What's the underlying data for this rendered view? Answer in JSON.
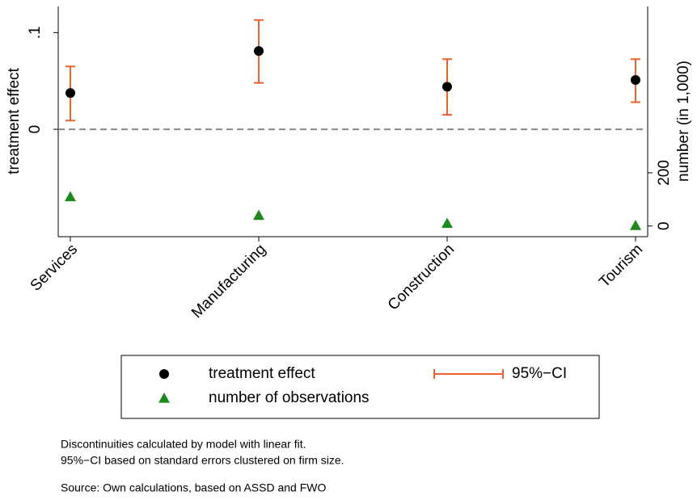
{
  "chart_data": {
    "type": "scatter",
    "categories": [
      "Services",
      "Manufacturing",
      "Construction",
      "Tourism"
    ],
    "ylabel": "treatment effect",
    "y2label": "number (in 1,000)",
    "ylim": [
      -0.111,
      0.127
    ],
    "yticks": [
      {
        "value": 0,
        "label": "0"
      },
      {
        "value": 0.1,
        "label": ".1"
      }
    ],
    "y2lim": [
      -40,
      825
    ],
    "y2ticks": [
      0,
      200
    ],
    "reference_line": 0,
    "series": [
      {
        "name": "treatment effect",
        "color": "#000000",
        "marker": "circle",
        "values": [
          0.0375,
          0.081,
          0.044,
          0.051
        ],
        "ci_name": "95%−CI",
        "ci_color": "#f0602a",
        "ci_lower": [
          0.009,
          0.048,
          0.015,
          0.028
        ],
        "ci_upper": [
          0.065,
          0.113,
          0.0725,
          0.0725
        ]
      },
      {
        "name": "number of observations",
        "color": "#1a8a1a",
        "marker": "triangle",
        "axis": "y2",
        "values": [
          110,
          40,
          10,
          2
        ]
      }
    ],
    "notes": [
      "Discontinuities calculated by model with linear fit.",
      "95%−CI based on standard errors clustered on firm size.",
      "Source: Own calculations, based on ASSD and FWO"
    ]
  }
}
